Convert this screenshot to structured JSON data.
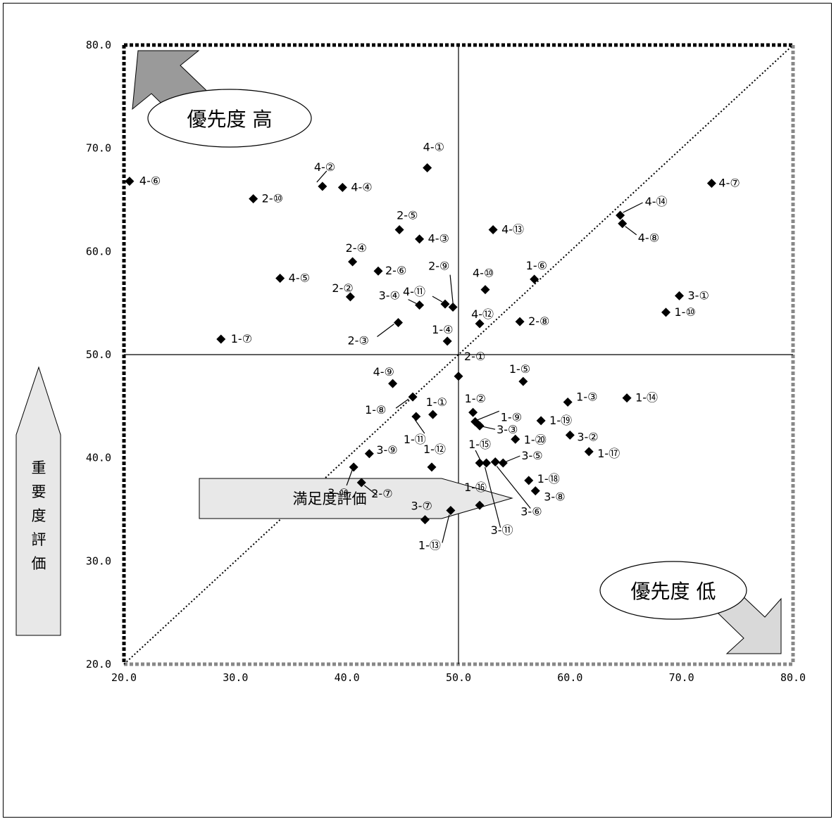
{
  "chart_data": {
    "type": "scatter",
    "xlabel": "満足度評価",
    "ylabel": "重要度評価",
    "xlim": [
      20,
      80
    ],
    "ylim": [
      20,
      80
    ],
    "x_ticks": [
      "20.0",
      "30.0",
      "40.0",
      "50.0",
      "60.0",
      "70.0",
      "80.0"
    ],
    "y_ticks": [
      "20.0",
      "30.0",
      "40.0",
      "50.0",
      "60.0",
      "70.0",
      "80.0"
    ],
    "quadrant_lines": {
      "x": 50,
      "y": 50
    },
    "diagonal": true,
    "annotations": {
      "high_priority": "優先度 高",
      "low_priority": "優先度 低"
    },
    "points": [
      {
        "label": "4-⑥",
        "x": 20.5,
        "y": 66.8
      },
      {
        "label": "4-②",
        "x": 37.8,
        "y": 66.3
      },
      {
        "label": "4-④",
        "x": 39.6,
        "y": 66.2
      },
      {
        "label": "2-⑩",
        "x": 31.6,
        "y": 65.1
      },
      {
        "label": "4-①",
        "x": 47.2,
        "y": 68.1
      },
      {
        "label": "2-⑤",
        "x": 44.7,
        "y": 62.1
      },
      {
        "label": "4-③",
        "x": 46.5,
        "y": 61.2
      },
      {
        "label": "4-⑬",
        "x": 53.1,
        "y": 62.1
      },
      {
        "label": "4-⑦",
        "x": 72.7,
        "y": 66.6
      },
      {
        "label": "4-⑭",
        "x": 64.5,
        "y": 63.5
      },
      {
        "label": "4-⑧",
        "x": 64.7,
        "y": 62.7
      },
      {
        "label": "2-④",
        "x": 40.5,
        "y": 59.0
      },
      {
        "label": "2-⑥",
        "x": 42.8,
        "y": 58.1
      },
      {
        "label": "4-⑤",
        "x": 34.0,
        "y": 57.4
      },
      {
        "label": "2-⑨",
        "x": 49.5,
        "y": 54.6
      },
      {
        "label": "4-⑩",
        "x": 52.4,
        "y": 56.3
      },
      {
        "label": "1-⑥",
        "x": 56.8,
        "y": 57.3
      },
      {
        "label": "3-①",
        "x": 69.8,
        "y": 55.7
      },
      {
        "label": "1-⑩",
        "x": 68.6,
        "y": 54.1
      },
      {
        "label": "2-②",
        "x": 40.3,
        "y": 55.6
      },
      {
        "label": "3-④",
        "x": 46.5,
        "y": 54.8
      },
      {
        "label": "4-⑪",
        "x": 48.8,
        "y": 54.9
      },
      {
        "label": "4-⑫",
        "x": 51.9,
        "y": 53.0
      },
      {
        "label": "2-⑧",
        "x": 55.5,
        "y": 53.2
      },
      {
        "label": "2-③",
        "x": 44.6,
        "y": 53.1
      },
      {
        "label": "1-④",
        "x": 49.0,
        "y": 51.3
      },
      {
        "label": "1-⑦",
        "x": 28.7,
        "y": 51.5
      },
      {
        "label": "2-①",
        "x": 50.0,
        "y": 47.9
      },
      {
        "label": "1-⑤",
        "x": 55.8,
        "y": 47.4
      },
      {
        "label": "4-⑨",
        "x": 44.1,
        "y": 47.2
      },
      {
        "label": "1-⑧",
        "x": 45.9,
        "y": 45.9
      },
      {
        "label": "1-①",
        "x": 47.7,
        "y": 44.2
      },
      {
        "label": "1-⑪",
        "x": 46.2,
        "y": 44.0
      },
      {
        "label": "1-②",
        "x": 51.3,
        "y": 44.4
      },
      {
        "label": "1-⑨",
        "x": 51.5,
        "y": 43.5
      },
      {
        "label": "3-③",
        "x": 51.9,
        "y": 43.1
      },
      {
        "label": "1-③",
        "x": 59.8,
        "y": 45.4
      },
      {
        "label": "1-⑭",
        "x": 65.1,
        "y": 45.8
      },
      {
        "label": "1-⑲",
        "x": 57.4,
        "y": 43.6
      },
      {
        "label": "1-⑳",
        "x": 55.1,
        "y": 41.8
      },
      {
        "label": "3-②",
        "x": 60.0,
        "y": 42.2
      },
      {
        "label": "1-⑰",
        "x": 61.7,
        "y": 40.6
      },
      {
        "label": "3-⑨",
        "x": 42.0,
        "y": 40.4
      },
      {
        "label": "1-⑫",
        "x": 47.6,
        "y": 39.1
      },
      {
        "label": "3-⑩",
        "x": 40.6,
        "y": 39.1
      },
      {
        "label": "1-⑮",
        "x": 51.9,
        "y": 39.5
      },
      {
        "label": "3-⑪",
        "x": 52.5,
        "y": 39.5
      },
      {
        "label": "3-⑥",
        "x": 53.3,
        "y": 39.6
      },
      {
        "label": "3-⑤",
        "x": 54.0,
        "y": 39.5
      },
      {
        "label": "1-⑱",
        "x": 56.3,
        "y": 37.8
      },
      {
        "label": "3-⑧",
        "x": 56.9,
        "y": 36.8
      },
      {
        "label": "2-⑦",
        "x": 41.3,
        "y": 37.6
      },
      {
        "label": "1-⑯",
        "x": 51.9,
        "y": 35.4
      },
      {
        "label": "1-⑬",
        "x": 49.3,
        "y": 34.9
      },
      {
        "label": "3-⑦",
        "x": 47.0,
        "y": 34.0
      }
    ]
  }
}
